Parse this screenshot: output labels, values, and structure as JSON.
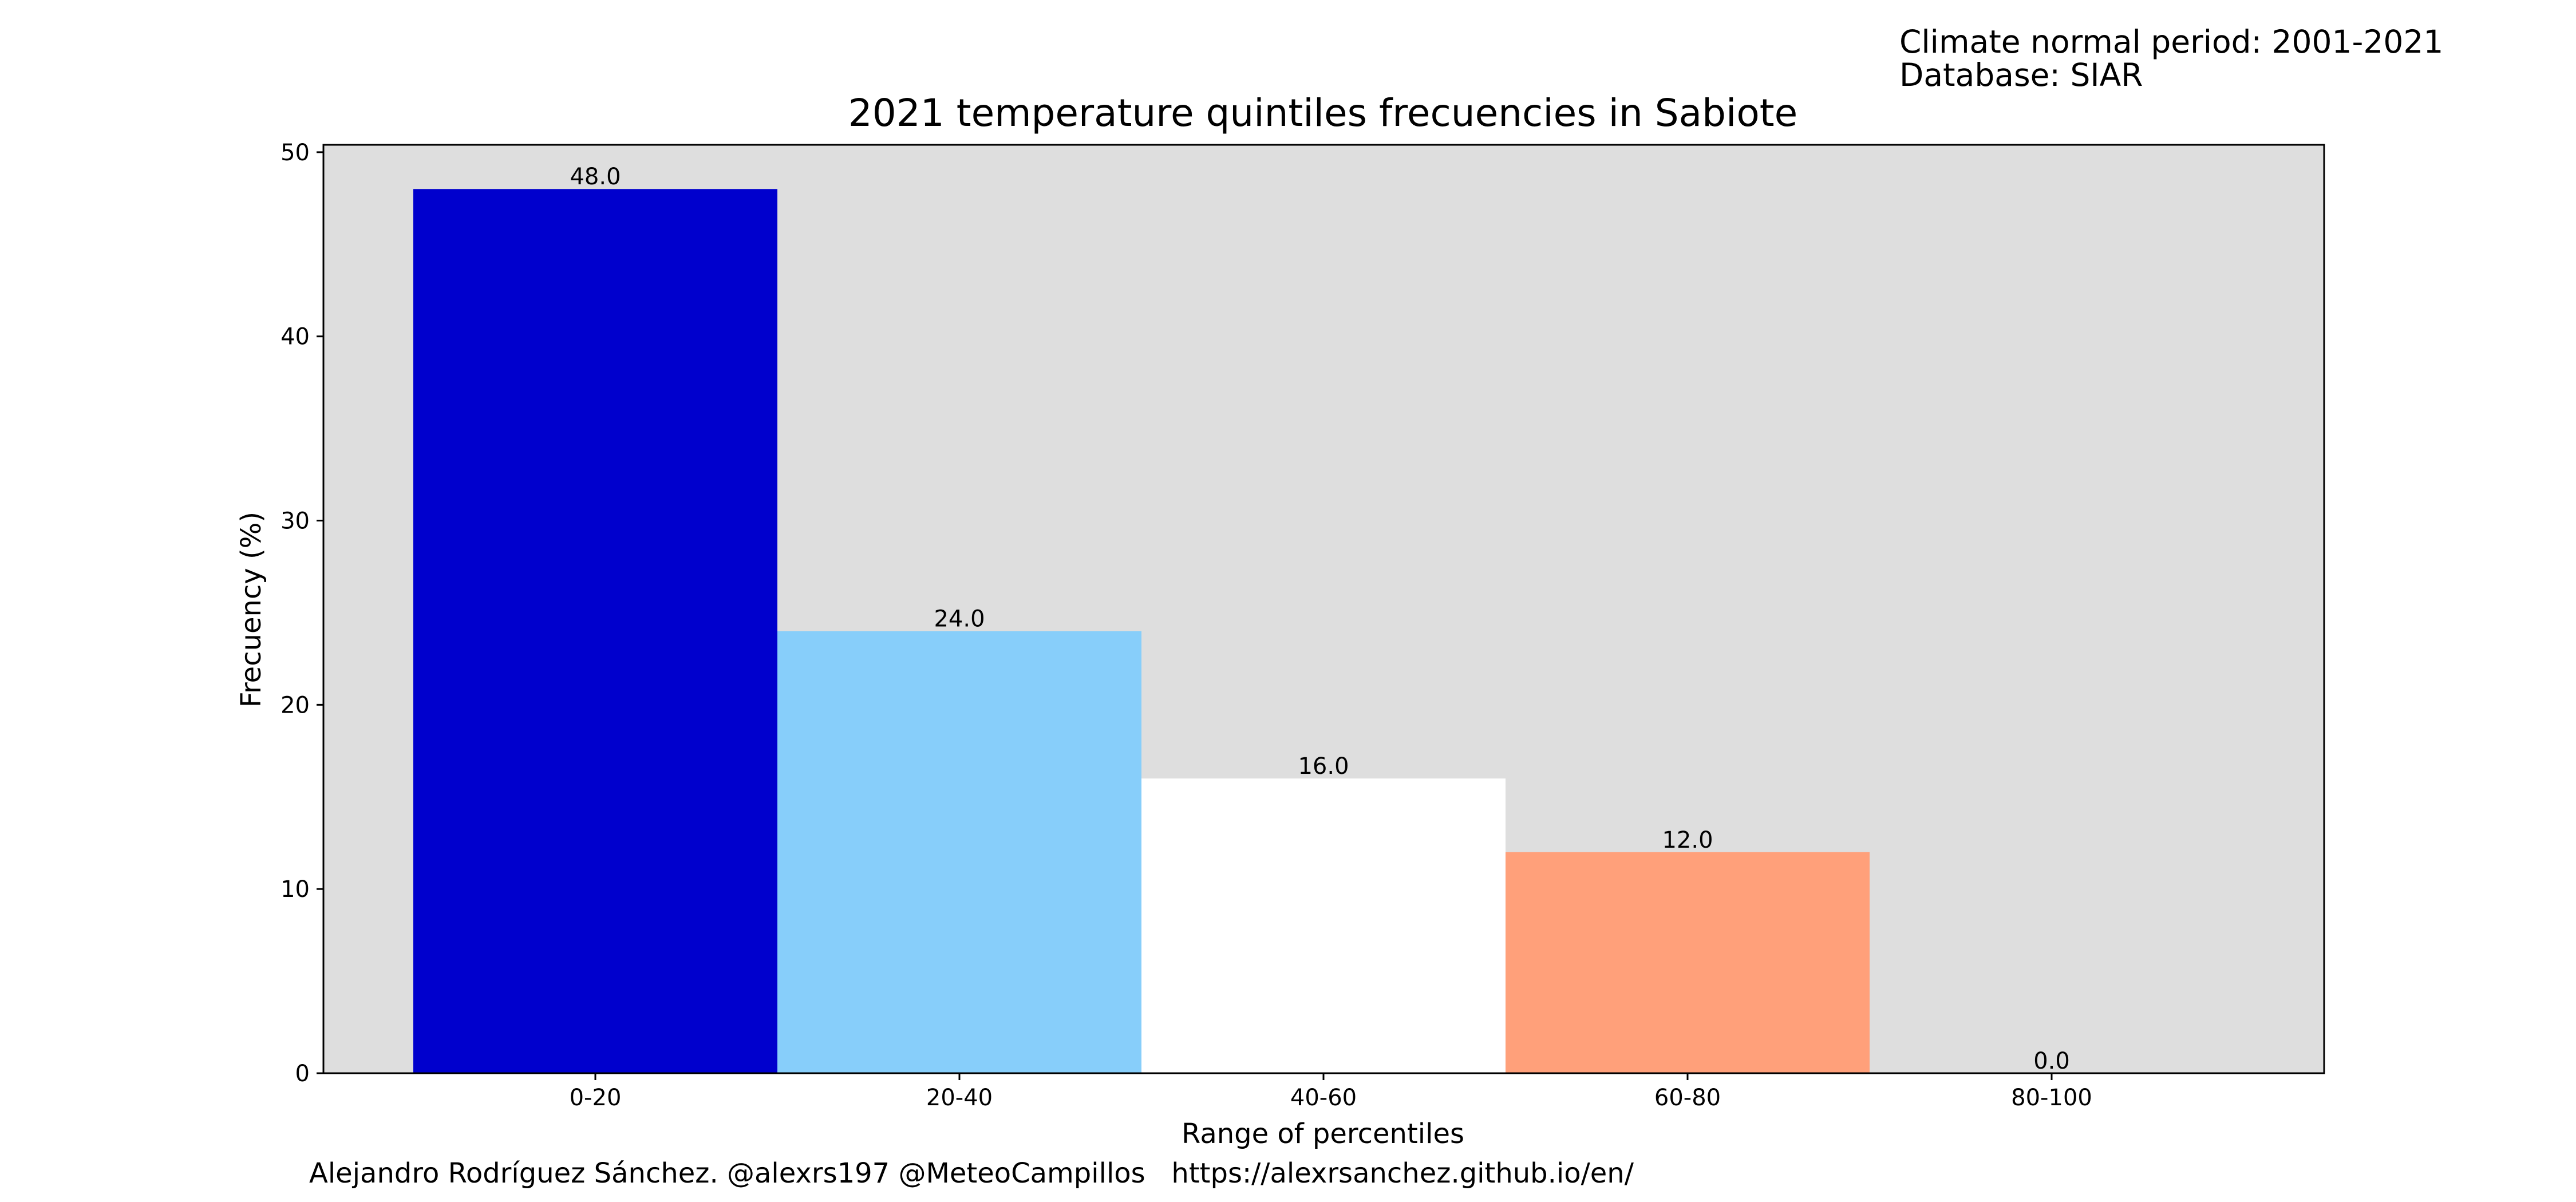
{
  "header": {
    "climate_period": "Climate normal period: 2001-2021",
    "database": "Database: SIAR"
  },
  "footer": {
    "credits": "Alejandro Rodríguez Sánchez. @alexrs197 @MeteoCampillos   https://alexrsanchez.github.io/en/"
  },
  "chart_data": {
    "type": "bar",
    "title": "2021 temperature quintiles frecuencies in Sabiote",
    "xlabel": "Range of percentiles",
    "ylabel": "Frecuency (%)",
    "categories": [
      "0-20",
      "20-40",
      "40-60",
      "60-80",
      "80-100"
    ],
    "values": [
      48.0,
      24.0,
      16.0,
      12.0,
      0.0
    ],
    "value_labels": [
      "48.0",
      "24.0",
      "16.0",
      "12.0",
      "0.0"
    ],
    "bar_colors": [
      "#0000cd",
      "#87cefa",
      "#ffffff",
      "#ffa07a",
      "#ffffff"
    ],
    "ylim": [
      0,
      50.4
    ],
    "yticks": [
      0,
      10,
      20,
      30,
      40,
      50
    ],
    "ytick_labels": [
      "0",
      "10",
      "20",
      "30",
      "40",
      "50"
    ],
    "plot_background": "#dedede",
    "grid": false
  }
}
